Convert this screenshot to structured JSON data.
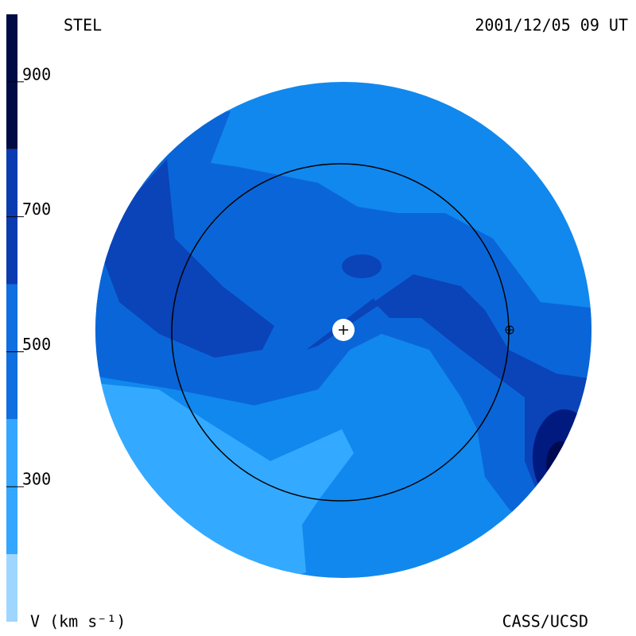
{
  "header": {
    "left": "STEL",
    "right": "2001/12/05 09 UT"
  },
  "footer": {
    "right": "CASS/UCSD"
  },
  "chart_data": {
    "type": "colorbar",
    "label": "V (km s⁻¹)",
    "zlim": [
      100,
      1000
    ],
    "ticks": [
      300,
      500,
      700,
      900
    ],
    "levels": [
      100,
      200,
      400,
      600,
      800,
      1000
    ],
    "colors": [
      "#9fd6ff",
      "#33a6ff",
      "#0f6ee0",
      "#0a3bb0",
      "#000a45"
    ]
  }
}
